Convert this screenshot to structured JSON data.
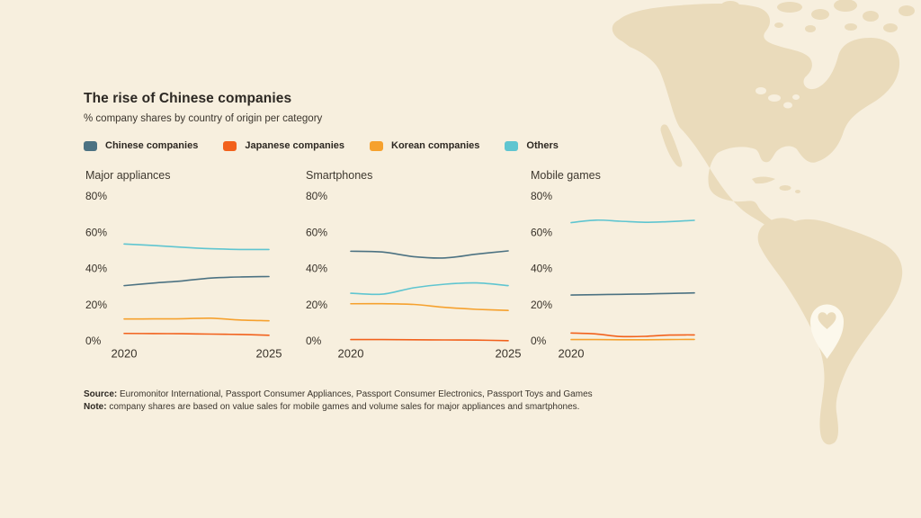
{
  "header": {
    "title": "The rise of Chinese companies",
    "subtitle": "% company shares by country of origin per category"
  },
  "legend": [
    {
      "label": "Chinese companies",
      "color": "#4C7282"
    },
    {
      "label": "Japanese companies",
      "color": "#F2611C"
    },
    {
      "label": "Korean companies",
      "color": "#F6A12E"
    },
    {
      "label": "Others",
      "color": "#5FC5D0"
    }
  ],
  "chart_data": [
    {
      "type": "line",
      "title": "Major appliances",
      "x": [
        2020,
        2021,
        2022,
        2023,
        2024,
        2025
      ],
      "xticks": [
        "2020",
        "2025"
      ],
      "yticks": [
        "80%",
        "60%",
        "40%",
        "20%",
        "0%"
      ],
      "ylim": [
        0,
        80
      ],
      "grid": false,
      "series": [
        {
          "name": "Chinese companies",
          "color": "#4C7282",
          "values": [
            31.0,
            32.4,
            33.6,
            35.2,
            35.8,
            36.0
          ]
        },
        {
          "name": "Japanese companies",
          "color": "#F2611C",
          "values": [
            4.6,
            4.5,
            4.4,
            4.2,
            4.0,
            3.6
          ]
        },
        {
          "name": "Korean companies",
          "color": "#F6A12E",
          "values": [
            12.6,
            12.6,
            12.7,
            13.0,
            12.0,
            11.6
          ]
        },
        {
          "name": "Others",
          "color": "#5FC5D0",
          "values": [
            54.0,
            53.2,
            52.2,
            51.4,
            51.0,
            51.0
          ]
        }
      ]
    },
    {
      "type": "line",
      "title": "Smartphones",
      "x": [
        2020,
        2021,
        2022,
        2023,
        2024,
        2025
      ],
      "xticks": [
        "2020",
        "2025"
      ],
      "yticks": [
        "80%",
        "60%",
        "40%",
        "20%",
        "0%"
      ],
      "ylim": [
        0,
        80
      ],
      "grid": false,
      "series": [
        {
          "name": "Chinese companies",
          "color": "#4C7282",
          "values": [
            50.0,
            49.6,
            47.0,
            46.3,
            48.4,
            50.2
          ]
        },
        {
          "name": "Japanese companies",
          "color": "#F2611C",
          "values": [
            1.2,
            1.2,
            1.1,
            1.0,
            0.9,
            0.6
          ]
        },
        {
          "name": "Korean companies",
          "color": "#F6A12E",
          "values": [
            21.0,
            21.0,
            20.6,
            19.0,
            17.9,
            17.3
          ]
        },
        {
          "name": "Others",
          "color": "#5FC5D0",
          "values": [
            26.8,
            26.3,
            29.8,
            31.8,
            32.5,
            31.0
          ]
        }
      ]
    },
    {
      "type": "line",
      "title": "Mobile games",
      "x": [
        2020,
        2021,
        2022,
        2023,
        2024,
        2025
      ],
      "xticks": [
        "2020"
      ],
      "yticks": [
        "80%",
        "60%",
        "40%",
        "20%",
        "0%"
      ],
      "ylim": [
        0,
        80
      ],
      "grid": false,
      "series": [
        {
          "name": "Chinese companies",
          "color": "#4C7282",
          "values": [
            25.8,
            26.0,
            26.2,
            26.4,
            26.7,
            27.0
          ]
        },
        {
          "name": "Japanese companies",
          "color": "#F2611C",
          "values": [
            4.8,
            4.3,
            2.9,
            3.0,
            3.7,
            3.8
          ]
        },
        {
          "name": "Korean companies",
          "color": "#F6A12E",
          "values": [
            1.2,
            1.2,
            1.1,
            1.1,
            1.2,
            1.3
          ]
        },
        {
          "name": "Others",
          "color": "#5FC5D0",
          "values": [
            65.8,
            67.2,
            66.6,
            66.0,
            66.4,
            67.1
          ]
        }
      ]
    }
  ],
  "footer": {
    "source_label": "Source:",
    "source_text": "Euromonitor International, Passport Consumer Appliances, Passport Consumer Electronics, Passport Toys and Games",
    "note_label": "Note:",
    "note_text": "company shares are based on value sales for mobile games and volume sales for major appliances and smartphones."
  },
  "colors": {
    "background": "#F7EFDE",
    "map": "#EADBBB",
    "pin": "#FCF8EC"
  }
}
